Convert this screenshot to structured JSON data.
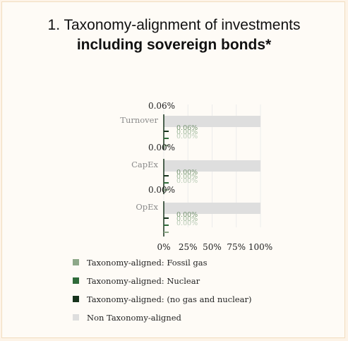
{
  "title_line1": "1. Taxonomy-alignment of investments",
  "title_line2": "including sovereign bonds*",
  "chart_data": {
    "type": "bar",
    "orientation": "horizontal",
    "stacked": true,
    "categories": [
      "Turnover",
      "CapEx",
      "OpEx"
    ],
    "top_labels": [
      "0.06%",
      "0.00%",
      "0.00%"
    ],
    "series": [
      {
        "name": "Taxonomy-aligned: Fossil gas",
        "values": [
          0.0,
          0.0,
          0.0
        ],
        "color": "#8da889"
      },
      {
        "name": "Taxonomy-aligned: Nuclear",
        "values": [
          0.0,
          0.0,
          0.0
        ],
        "color": "#2f6b3a"
      },
      {
        "name": "Taxonomy-aligned: (no gas and nuclear)",
        "values": [
          0.06,
          0.0,
          0.0
        ],
        "color": "#17331c"
      },
      {
        "name": "Non Taxonomy-aligned",
        "values": [
          99.94,
          100,
          100
        ],
        "color": "#dedede"
      }
    ],
    "data_labels": [
      [
        "0.06%",
        "0.00%",
        "0.00%"
      ],
      [
        "0.00%",
        "0.00%",
        "0.00%"
      ],
      [
        "0.00%",
        "0.00%",
        "0.00%"
      ]
    ],
    "x_ticks": [
      "0%",
      "25%",
      "50%",
      "75%",
      "100%"
    ],
    "xlim": [
      0,
      100
    ],
    "grid": true,
    "legend_position": "bottom"
  }
}
